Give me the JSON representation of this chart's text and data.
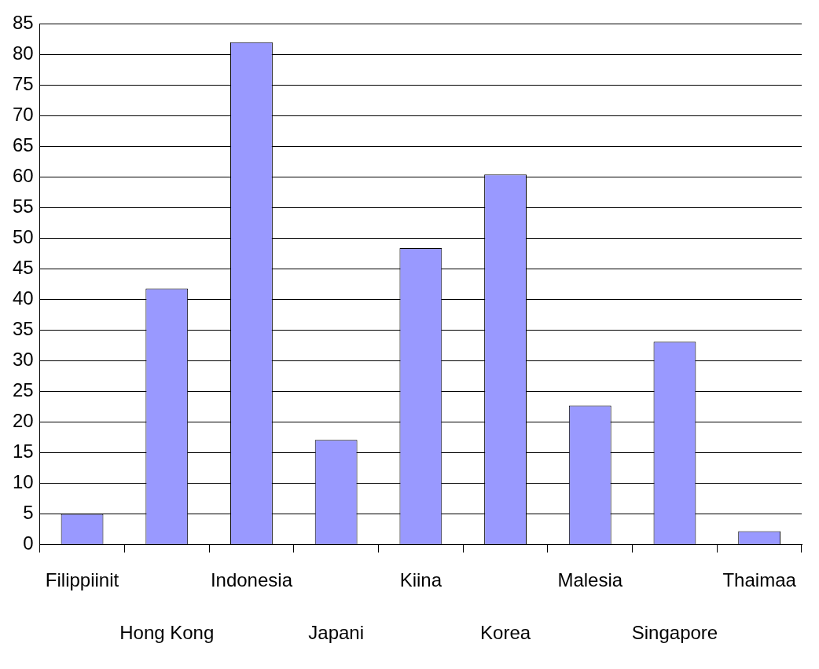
{
  "chart_data": {
    "type": "bar",
    "categories": [
      "Filippiinit",
      "Hong Kong",
      "Indonesia",
      "Japani",
      "Kiina",
      "Korea",
      "Malesia",
      "Singapore",
      "Thaimaa"
    ],
    "values": [
      5,
      41.8,
      82,
      17.1,
      48.4,
      60.4,
      22.7,
      33.1,
      2.2
    ],
    "color": "#9999ff",
    "ylim": [
      0,
      85
    ],
    "yticks": [
      0,
      5,
      10,
      15,
      20,
      25,
      30,
      35,
      40,
      45,
      50,
      55,
      60,
      65,
      70,
      75,
      80,
      85
    ],
    "grid": "y"
  }
}
